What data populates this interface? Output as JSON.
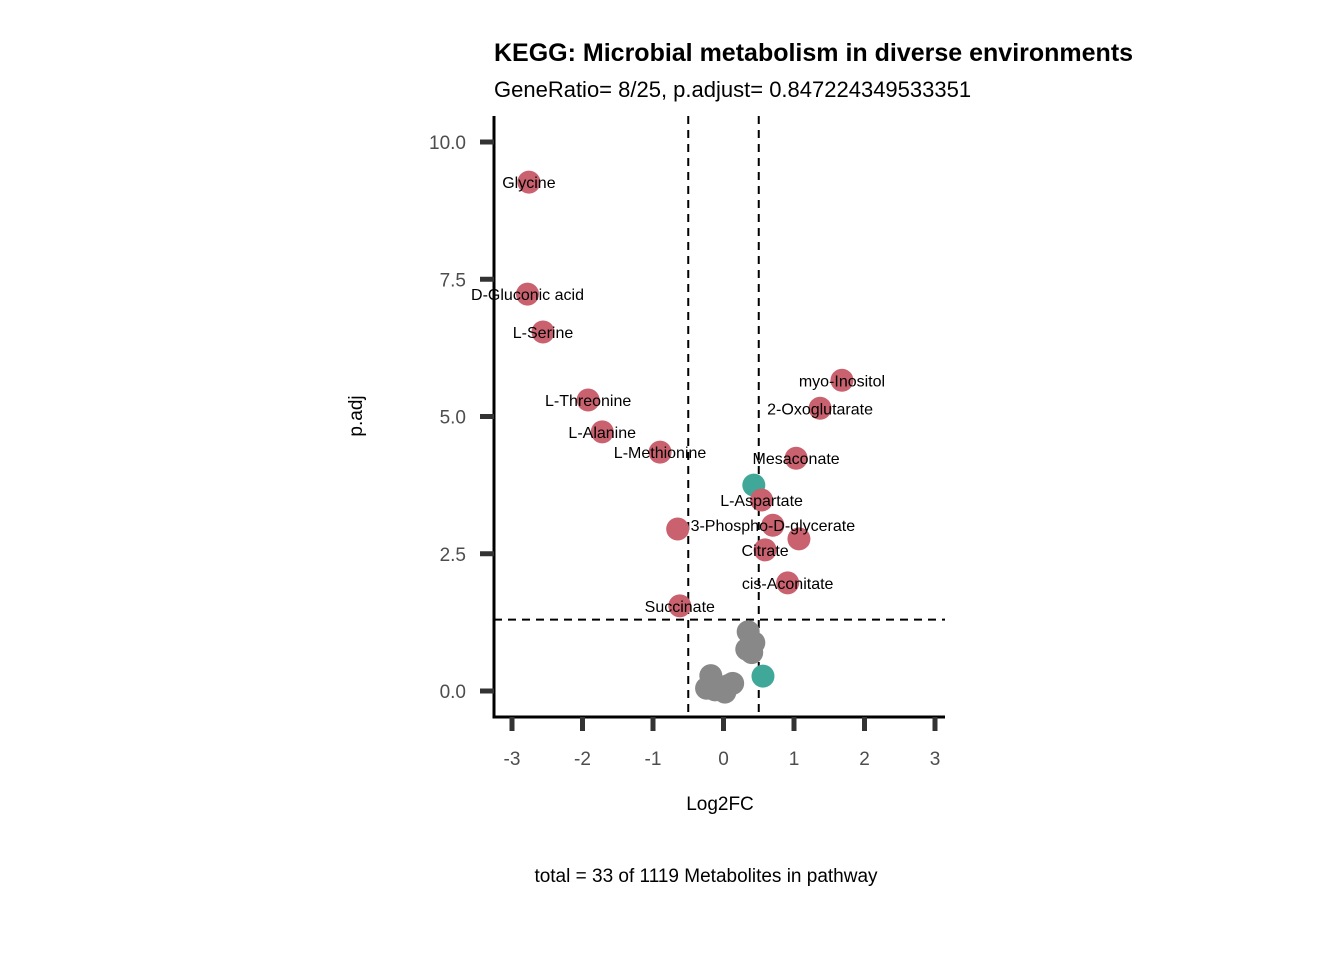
{
  "chart_data": {
    "type": "scatter",
    "title": "KEGG: Microbial metabolism in diverse environments",
    "subtitle": "GeneRatio= 8/25, p.adjust= 0.847224349533351",
    "xlabel": "Log2FC",
    "ylabel": "p.adj",
    "caption": "total = 33 of 1119 Metabolites in pathway",
    "xlim": [
      -3.3,
      3.15
    ],
    "ylim": [
      -0.5,
      10.5
    ],
    "x_ticks": [
      -3,
      -2,
      -1,
      0,
      1,
      2,
      3
    ],
    "x_tick_labels": [
      "-3",
      "-2",
      "-1",
      "0",
      "1",
      "2",
      "3"
    ],
    "y_ticks": [
      0,
      2.5,
      5,
      7.5,
      10
    ],
    "y_tick_labels": [
      "0.0",
      "2.5",
      "5.0",
      "7.5",
      "10.0"
    ],
    "grid": false,
    "thresholds": {
      "x": [
        -0.5,
        0.5
      ],
      "y": 1.3
    },
    "colors": {
      "significant": "#c9616f",
      "teal": "#3fa898",
      "nonsignificant": "#888888"
    },
    "points": [
      {
        "label": "Glycine",
        "x": -2.76,
        "y": 9.27,
        "group": "significant"
      },
      {
        "label": "D-Gluconic acid",
        "x": -2.78,
        "y": 7.23,
        "group": "significant"
      },
      {
        "label": "L-Serine",
        "x": -2.56,
        "y": 6.54,
        "group": "significant"
      },
      {
        "label": "L-Threonine",
        "x": -1.92,
        "y": 5.3,
        "group": "significant"
      },
      {
        "label": "L-Alanine",
        "x": -1.72,
        "y": 4.72,
        "group": "significant"
      },
      {
        "label": "L-Methionine",
        "x": -0.9,
        "y": 4.35,
        "group": "significant"
      },
      {
        "label": "",
        "x": -0.65,
        "y": 2.95,
        "group": "significant"
      },
      {
        "label": "Succinate",
        "x": -0.62,
        "y": 1.55,
        "group": "significant"
      },
      {
        "label": "myo-Inositol",
        "x": 1.68,
        "y": 5.66,
        "group": "significant"
      },
      {
        "label": "2-Oxoglutarate",
        "x": 1.37,
        "y": 5.15,
        "group": "significant"
      },
      {
        "label": "Mesaconate",
        "x": 1.03,
        "y": 4.24,
        "group": "significant"
      },
      {
        "label": "",
        "x": 0.43,
        "y": 3.75,
        "group": "teal"
      },
      {
        "label": "L-Aspartate",
        "x": 0.54,
        "y": 3.48,
        "group": "significant"
      },
      {
        "label": "3-Phospho-D-glycerate",
        "x": 0.7,
        "y": 3.02,
        "group": "significant"
      },
      {
        "label": "",
        "x": 1.07,
        "y": 2.77,
        "group": "significant"
      },
      {
        "label": "Citrate",
        "x": 0.59,
        "y": 2.57,
        "group": "significant"
      },
      {
        "label": "cis-Aconitate",
        "x": 0.91,
        "y": 1.97,
        "group": "significant"
      },
      {
        "label": "",
        "x": 0.56,
        "y": 0.27,
        "group": "teal"
      },
      {
        "label": "",
        "x": 0.35,
        "y": 1.08,
        "group": "nonsignificant"
      },
      {
        "label": "",
        "x": 0.43,
        "y": 0.88,
        "group": "nonsignificant"
      },
      {
        "label": "",
        "x": 0.33,
        "y": 0.76,
        "group": "nonsignificant"
      },
      {
        "label": "",
        "x": 0.4,
        "y": 0.7,
        "group": "nonsignificant"
      },
      {
        "label": "",
        "x": -0.18,
        "y": 0.28,
        "group": "nonsignificant"
      },
      {
        "label": "",
        "x": -0.24,
        "y": 0.05,
        "group": "nonsignificant"
      },
      {
        "label": "",
        "x": -0.05,
        "y": 0.08,
        "group": "nonsignificant"
      },
      {
        "label": "",
        "x": 0.13,
        "y": 0.14,
        "group": "nonsignificant"
      },
      {
        "label": "",
        "x": 0.02,
        "y": -0.02,
        "group": "nonsignificant"
      },
      {
        "label": "",
        "x": -0.12,
        "y": 0.02,
        "group": "nonsignificant"
      },
      {
        "label": "",
        "x": 0.07,
        "y": 0.1,
        "group": "nonsignificant"
      }
    ]
  }
}
